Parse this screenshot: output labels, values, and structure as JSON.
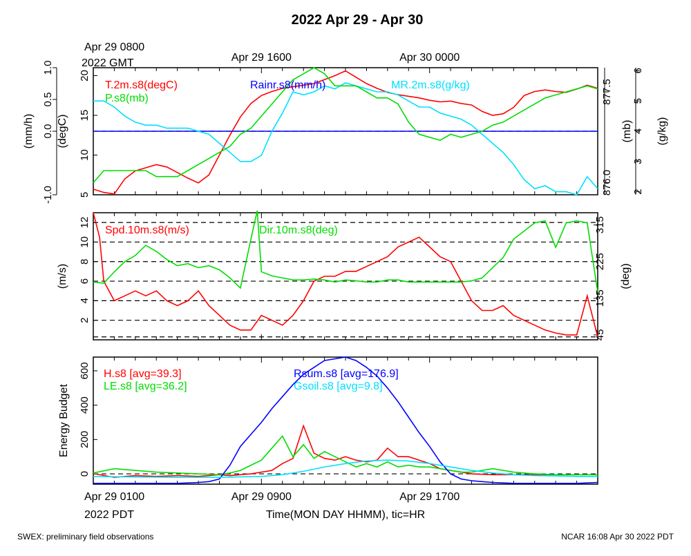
{
  "title": "2022 Apr 29 - Apr 30",
  "footer": {
    "left": "SWEX: preliminary field observations",
    "right": "NCAR 16:08 Apr 30 2022 PDT"
  },
  "colors": {
    "red": "#ff0000",
    "green": "#00dd00",
    "blue": "#0000ff",
    "cyan": "#00e0ff",
    "black": "#000000"
  },
  "top_axis": {
    "ticks": [
      {
        "label": "Apr 29 0800",
        "hour": 0
      },
      {
        "label": "Apr 29 1600",
        "hour": 8
      },
      {
        "label": "Apr 30 0000",
        "hour": 16
      }
    ],
    "unit_label": "2022 GMT"
  },
  "bottom_axis": {
    "ticks": [
      {
        "label": "Apr 29 0100",
        "hour": 0
      },
      {
        "label": "Apr 29 0900",
        "hour": 8
      },
      {
        "label": "Apr 29 1700",
        "hour": 16
      }
    ],
    "unit_label": "2022 PDT",
    "xlabel": "Time(MON DAY HHMM), tic=HR",
    "hour_range": [
      0,
      24
    ]
  },
  "chart_data": [
    {
      "type": "line",
      "panel": "top",
      "axes": {
        "rain": {
          "label": "(mm/h)",
          "ylim": [
            -1.0,
            1.0
          ],
          "ticks": [
            "-1.0",
            "0.0",
            "0.5",
            "1.0"
          ],
          "tick_values": [
            -1.0,
            0.0,
            0.5,
            1.0
          ]
        },
        "temp": {
          "label": "(degC)",
          "ylim": [
            5,
            21
          ],
          "ticks": [
            "5",
            "10",
            "15",
            "20"
          ],
          "tick_values": [
            5,
            10,
            15,
            20
          ]
        },
        "pres": {
          "label": "(mb)",
          "ylim": [
            875.8,
            877.9
          ],
          "ticks": [
            "876.0",
            "877.5"
          ],
          "tick_values": [
            876.0,
            877.5
          ]
        },
        "mr": {
          "label": "(g/kg)",
          "ylim": [
            1.9,
            6.1
          ],
          "ticks": [
            "2",
            "3",
            "4",
            "5",
            "6"
          ],
          "tick_values": [
            2,
            3,
            4,
            5,
            6
          ]
        }
      },
      "series": [
        {
          "name": "T.2m.s8(degC)",
          "axis": "temp",
          "color": "#ff0000",
          "x": [
            0,
            0.5,
            1,
            1.5,
            2,
            2.5,
            3,
            3.5,
            4,
            4.5,
            5,
            5.5,
            6,
            6.5,
            7,
            7.5,
            8,
            8.5,
            9,
            9.5,
            10,
            10.5,
            11,
            11.5,
            12,
            12.5,
            13,
            13.5,
            14,
            14.5,
            15,
            15.5,
            16,
            16.5,
            17,
            17.5,
            18,
            18.5,
            19,
            19.5,
            20,
            20.5,
            21,
            21.5,
            22,
            22.5,
            23,
            23.5,
            24
          ],
          "y": [
            5.7,
            5.3,
            5.1,
            7.0,
            8.0,
            8.4,
            8.8,
            8.5,
            7.8,
            7.1,
            6.5,
            7.5,
            10.0,
            12.5,
            14.8,
            16.5,
            17.5,
            18.0,
            18.4,
            18.6,
            18.8,
            19.0,
            19.5,
            20.0,
            20.6,
            19.8,
            19.0,
            18.4,
            17.9,
            17.6,
            17.4,
            17.2,
            16.9,
            16.7,
            16.8,
            16.5,
            16.3,
            15.5,
            15.0,
            15.2,
            16.0,
            17.5,
            18.0,
            18.2,
            18.0,
            17.9,
            18.3,
            18.8,
            18.4
          ]
        },
        {
          "name": "Rainr.s8(mm/h)",
          "axis": "rain",
          "color": "#0000ff",
          "x": [
            0,
            24
          ],
          "y": [
            0.0,
            0.0
          ]
        },
        {
          "name": "MR.2m.s8(g/kg)",
          "axis": "mr",
          "color": "#00e0ff",
          "x": [
            0,
            0.5,
            1,
            1.5,
            2,
            2.5,
            3,
            3.5,
            4,
            4.5,
            5,
            5.5,
            6,
            6.5,
            7,
            7.5,
            8,
            8.5,
            9,
            9.5,
            10,
            10.5,
            11,
            11.5,
            12,
            12.5,
            13,
            13.5,
            14,
            14.5,
            15,
            15.5,
            16,
            16.5,
            17,
            17.5,
            18,
            18.5,
            19,
            19.5,
            20,
            20.5,
            21,
            21.5,
            22,
            22.5,
            23,
            23.5,
            24
          ],
          "y": [
            5.0,
            5.0,
            4.8,
            4.5,
            4.3,
            4.2,
            4.2,
            4.1,
            4.1,
            4.1,
            4.0,
            3.9,
            3.6,
            3.3,
            3.0,
            3.0,
            3.2,
            4.0,
            4.6,
            5.3,
            5.2,
            5.3,
            5.5,
            5.4,
            5.6,
            5.5,
            5.4,
            5.3,
            5.3,
            5.2,
            5.0,
            4.8,
            4.8,
            4.6,
            4.5,
            4.4,
            4.2,
            3.9,
            3.6,
            3.3,
            2.9,
            2.4,
            2.1,
            2.2,
            2.0,
            2.0,
            1.9,
            2.5,
            2.1
          ]
        },
        {
          "name": "P.s8(mb)",
          "axis": "pres",
          "color": "#00dd00",
          "x": [
            0,
            0.5,
            1,
            1.5,
            2,
            2.5,
            3,
            3.5,
            4,
            4.5,
            5,
            5.5,
            6,
            6.5,
            7,
            7.5,
            8,
            8.5,
            9,
            9.5,
            10,
            10.5,
            11,
            11.5,
            12,
            12.5,
            13,
            13.5,
            14,
            14.5,
            15,
            15.5,
            16,
            16.5,
            17,
            17.5,
            18,
            18.5,
            19,
            19.5,
            20,
            20.5,
            21,
            21.5,
            22,
            22.5,
            23,
            23.5,
            24
          ],
          "y": [
            876.0,
            876.2,
            876.2,
            876.2,
            876.2,
            876.2,
            876.1,
            876.1,
            876.1,
            876.2,
            876.3,
            876.4,
            876.5,
            876.6,
            876.8,
            876.9,
            877.1,
            877.3,
            877.5,
            877.7,
            877.8,
            877.9,
            877.8,
            877.6,
            877.6,
            877.6,
            877.5,
            877.4,
            877.4,
            877.3,
            877.0,
            876.8,
            876.75,
            876.7,
            876.8,
            876.75,
            876.8,
            876.85,
            876.95,
            877.0,
            877.1,
            877.2,
            877.3,
            877.4,
            877.45,
            877.5,
            877.55,
            877.6,
            877.55
          ]
        }
      ]
    },
    {
      "type": "line",
      "panel": "middle",
      "axes": {
        "spd": {
          "label": "(m/s)",
          "ylim": [
            0,
            13
          ],
          "ticks": [
            "2",
            "4",
            "6",
            "8",
            "10",
            "12"
          ],
          "tick_values": [
            2,
            4,
            6,
            8,
            10,
            12
          ]
        },
        "dir": {
          "label": "(deg)",
          "ylim": [
            33,
            345
          ],
          "ticks": [
            "45",
            "135",
            "225",
            "315"
          ],
          "tick_values": [
            45,
            135,
            225,
            315
          ]
        }
      },
      "dashed_lines_spd": [
        0.3,
        2,
        4,
        6,
        8,
        10,
        12
      ],
      "series": [
        {
          "name": "Spd.10m.s8(m/s)",
          "axis": "spd",
          "color": "#ff0000",
          "x": [
            0,
            0.3,
            0.5,
            1,
            1.5,
            2,
            2.5,
            3,
            3.5,
            4,
            4.5,
            5,
            5.5,
            6,
            6.5,
            7,
            7.5,
            8,
            8.5,
            9,
            9.5,
            10,
            10.5,
            11,
            11.5,
            12,
            12.5,
            13,
            13.5,
            14,
            14.5,
            15,
            15.5,
            16,
            16.5,
            17,
            17.5,
            18,
            18.5,
            19,
            19.5,
            20,
            20.5,
            21,
            21.5,
            22,
            22.5,
            23,
            23.5,
            24
          ],
          "y": [
            13.0,
            10.5,
            6.0,
            4.0,
            4.5,
            5.0,
            4.5,
            5.0,
            4.0,
            3.5,
            4.0,
            5.0,
            3.5,
            2.5,
            1.5,
            1.0,
            1.0,
            2.5,
            2.0,
            1.5,
            2.5,
            4.0,
            6.0,
            6.5,
            6.5,
            7.0,
            7.0,
            7.5,
            8.0,
            8.5,
            9.5,
            10.0,
            10.5,
            9.5,
            8.5,
            8.0,
            6.0,
            4.0,
            3.0,
            3.0,
            3.5,
            2.5,
            2.0,
            1.5,
            1.0,
            0.7,
            0.5,
            0.5,
            4.5,
            0.3
          ]
        },
        {
          "name": "Dir.10m.s8(deg)",
          "axis": "dir",
          "color": "#00dd00",
          "x": [
            0,
            0.5,
            1,
            1.5,
            2,
            2.5,
            3,
            3.5,
            4,
            4.5,
            5,
            5.5,
            6,
            6.5,
            7,
            7.5,
            7.8,
            8,
            8.5,
            9,
            9.5,
            10,
            10.5,
            11,
            11.5,
            12,
            12.5,
            13,
            13.5,
            14,
            14.5,
            15,
            15.5,
            16,
            16.5,
            17,
            17.5,
            18,
            18.5,
            19,
            19.5,
            20,
            20.5,
            21,
            21.5,
            22,
            22.5,
            23,
            23.5,
            24
          ],
          "y": [
            175,
            172,
            200,
            225,
            240,
            265,
            250,
            230,
            215,
            220,
            210,
            215,
            205,
            185,
            160,
            280,
            350,
            200,
            190,
            185,
            180,
            180,
            182,
            180,
            175,
            180,
            178,
            175,
            175,
            180,
            180,
            175,
            175,
            175,
            175,
            175,
            175,
            178,
            185,
            210,
            235,
            280,
            300,
            320,
            325,
            260,
            320,
            325,
            320,
            150
          ]
        }
      ]
    },
    {
      "type": "line",
      "panel": "bottom",
      "axes": {
        "energy": {
          "label": "Energy Budget",
          "ylim": [
            -60,
            680
          ],
          "ticks": [
            "0",
            "200",
            "400",
            "600"
          ],
          "tick_values": [
            0,
            200,
            400,
            600
          ]
        }
      },
      "dashed_lines_energy": [
        0
      ],
      "series": [
        {
          "name": "H.s8",
          "avg": "[avg=39.3]",
          "axis": "energy",
          "color": "#ff0000",
          "x": [
            0,
            1,
            2,
            3,
            4,
            5,
            6,
            6.5,
            7,
            7.5,
            8,
            8.5,
            9,
            9.5,
            10,
            10.5,
            11,
            11.5,
            12,
            12.5,
            13,
            13.5,
            14,
            14.5,
            15,
            15.5,
            16,
            16.5,
            17,
            17.5,
            18,
            19,
            20,
            21,
            22,
            23,
            24
          ],
          "y": [
            2,
            -20,
            -10,
            -15,
            -10,
            -15,
            -5,
            -10,
            -5,
            0,
            10,
            20,
            60,
            90,
            280,
            120,
            90,
            80,
            100,
            80,
            70,
            80,
            150,
            100,
            100,
            80,
            60,
            30,
            20,
            10,
            0,
            -5,
            -5,
            -5,
            -5,
            -5,
            -5
          ]
        },
        {
          "name": "LE.s8",
          "avg": "[avg=36.2]",
          "axis": "energy",
          "color": "#00dd00",
          "x": [
            0,
            1,
            2,
            3,
            4,
            5,
            6,
            6.5,
            7,
            7.5,
            8,
            8.5,
            9,
            9.5,
            10,
            10.5,
            11,
            11.5,
            12,
            12.5,
            13,
            13.5,
            14,
            14.5,
            15,
            15.5,
            16,
            16.5,
            17,
            17.5,
            18,
            19,
            20,
            21,
            22,
            23,
            24
          ],
          "y": [
            5,
            30,
            20,
            10,
            5,
            0,
            -5,
            5,
            20,
            50,
            80,
            150,
            220,
            100,
            170,
            90,
            130,
            100,
            70,
            40,
            60,
            40,
            70,
            40,
            50,
            40,
            40,
            30,
            20,
            10,
            10,
            30,
            10,
            0,
            -5,
            -5,
            -5
          ]
        },
        {
          "name": "Rsum.s8",
          "avg": "[avg=176.9]",
          "axis": "energy",
          "color": "#0000ff",
          "x": [
            0,
            1,
            2,
            3,
            4,
            5,
            5.5,
            6,
            6.5,
            7,
            7.5,
            8,
            8.5,
            9,
            9.5,
            10,
            10.5,
            11,
            11.5,
            12,
            12.5,
            13,
            13.5,
            14,
            14.5,
            15,
            15.5,
            16,
            16.5,
            17,
            17.5,
            18,
            18.5,
            19,
            20,
            21,
            22,
            23,
            24
          ],
          "y": [
            -55,
            -55,
            -55,
            -55,
            -55,
            -50,
            -45,
            -30,
            50,
            160,
            230,
            300,
            380,
            450,
            520,
            580,
            620,
            660,
            670,
            680,
            660,
            620,
            570,
            500,
            420,
            330,
            240,
            160,
            70,
            0,
            -30,
            -40,
            -45,
            -50,
            -55,
            -55,
            -55,
            -55,
            -50
          ]
        },
        {
          "name": "Gsoil.s8",
          "avg": "[avg=9.8]",
          "axis": "energy",
          "color": "#00e0ff",
          "x": [
            0,
            2,
            4,
            6,
            8,
            9,
            10,
            11,
            12,
            13,
            14,
            15,
            16,
            17,
            18,
            19,
            20,
            21,
            22,
            23,
            24
          ],
          "y": [
            -15,
            -18,
            -20,
            -20,
            -15,
            -5,
            15,
            40,
            60,
            75,
            80,
            75,
            60,
            40,
            20,
            5,
            -5,
            -10,
            -12,
            -15,
            -15
          ]
        }
      ]
    }
  ]
}
